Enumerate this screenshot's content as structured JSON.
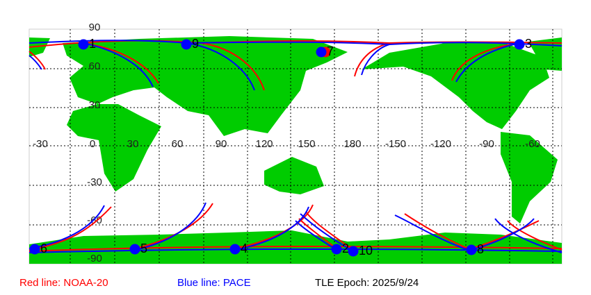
{
  "map": {
    "longitude_labels": [
      "-30",
      "0",
      "30",
      "60",
      "90",
      "120",
      "150",
      "180",
      "-150",
      "-120",
      "-90",
      "-60"
    ],
    "latitude_labels": [
      "90",
      "60",
      "30",
      "-30",
      "-60",
      "-90"
    ],
    "satellite_markers": [
      {
        "label": "1",
        "color": "#0000ff"
      },
      {
        "label": "9",
        "color": "#0000ff"
      },
      {
        "label": "7",
        "color": "#0000ff"
      },
      {
        "label": "3",
        "color": "#0000ff"
      },
      {
        "label": "6",
        "color": "#0000ff"
      },
      {
        "label": "5",
        "color": "#0000ff"
      },
      {
        "label": "4",
        "color": "#0000ff"
      },
      {
        "label": "2",
        "color": "#0000ff"
      },
      {
        "label": "10",
        "color": "#0000ff"
      },
      {
        "label": "8",
        "color": "#0000ff"
      }
    ]
  },
  "legend": {
    "red": {
      "text": "Red line: NOAA-20",
      "color": "#ff0000"
    },
    "blue": {
      "text": "Blue line: PACE",
      "color": "#0000ff"
    },
    "epoch": {
      "text": "TLE Epoch: 2025/9/24",
      "color": "#000000"
    }
  }
}
